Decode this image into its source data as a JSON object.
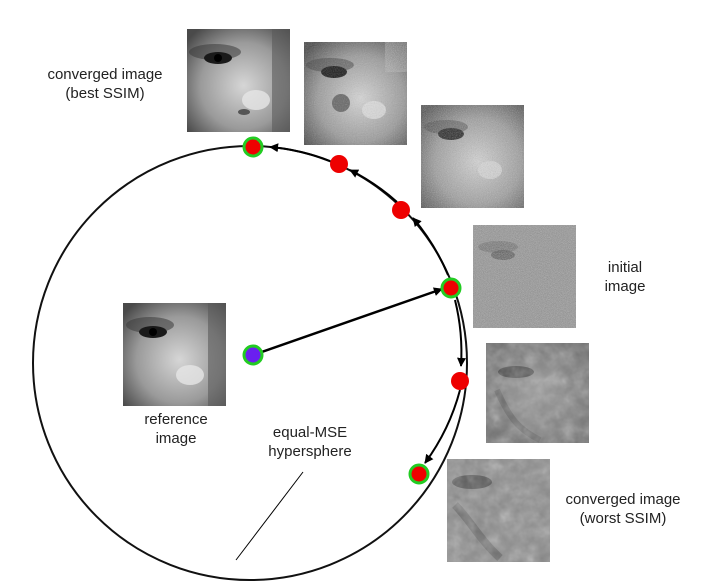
{
  "labels": {
    "converged_best": [
      "converged image",
      "(best SSIM)"
    ],
    "initial": [
      "initial",
      "image"
    ],
    "reference": [
      "reference",
      "image"
    ],
    "hypersphere": [
      "equal-MSE",
      "hypersphere"
    ],
    "converged_worst": [
      "converged image",
      "(worst SSIM)"
    ]
  },
  "images": [
    {
      "name": "converged-best-image",
      "style": "clean"
    },
    {
      "name": "intermediate-image-1",
      "style": "light-noise"
    },
    {
      "name": "intermediate-image-2",
      "style": "medium-noise"
    },
    {
      "name": "initial-image",
      "style": "heavy-noise"
    },
    {
      "name": "worst-intermediate-image",
      "style": "degraded"
    },
    {
      "name": "converged-worst-image",
      "style": "degraded-strong"
    },
    {
      "name": "reference-image",
      "style": "clean"
    }
  ],
  "colors": {
    "circle": "#111111",
    "point_red": "#ee0000",
    "point_ring": "#22cc22",
    "reference_point": "#6a1ff0",
    "arrow": "#000000"
  }
}
